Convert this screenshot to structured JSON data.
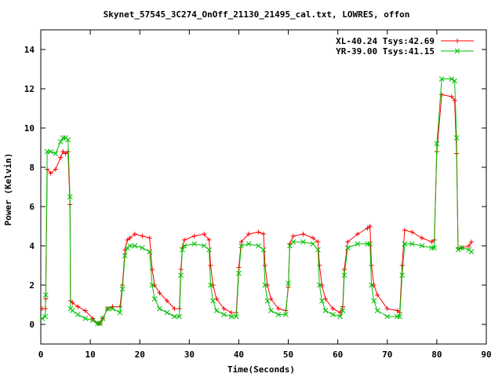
{
  "chart_data": {
    "type": "line",
    "title": "Skynet_57545_3C274_OnOff_21130_21495_cal.txt, LOWRES, offon",
    "xlabel": "Time(Seconds)",
    "ylabel": "Power (Kelvin)",
    "xlim": [
      0,
      90
    ],
    "ylim": [
      -1,
      15
    ],
    "xticks": [
      0,
      10,
      20,
      30,
      40,
      50,
      60,
      70,
      80,
      90
    ],
    "yticks": [
      0,
      2,
      4,
      6,
      8,
      10,
      12,
      14
    ],
    "grid": false,
    "legend_position": "top-right",
    "series": [
      {
        "name": "XL-40.24 Tsys:42.69",
        "color": "#ff0000",
        "marker": "plus",
        "x": [
          0.3,
          0.9,
          1.0,
          1.3,
          2.0,
          3.0,
          4.0,
          4.5,
          5.0,
          5.5,
          5.9,
          6.0,
          6.4,
          7.5,
          9.0,
          10.5,
          11.5,
          12.0,
          12.5,
          13.5,
          14.5,
          16.0,
          16.5,
          17.0,
          17.5,
          18.0,
          19.0,
          20.5,
          22.0,
          22.5,
          23.0,
          24.0,
          25.5,
          27.0,
          28.0,
          28.3,
          28.6,
          29.0,
          31.0,
          33.0,
          34.0,
          34.3,
          34.8,
          35.5,
          37.0,
          38.5,
          39.5,
          40.0,
          40.5,
          42.0,
          44.0,
          45.0,
          45.3,
          45.8,
          46.5,
          48.0,
          49.5,
          50.0,
          50.3,
          51.0,
          53.0,
          55.0,
          56.0,
          56.3,
          56.8,
          57.5,
          59.0,
          60.5,
          61.0,
          61.3,
          62.0,
          64.0,
          66.0,
          66.5,
          66.8,
          67.3,
          68.0,
          70.0,
          72.0,
          72.5,
          73.0,
          73.5,
          75.0,
          77.0,
          79.0,
          79.5,
          80.0,
          81.0,
          83.0,
          83.6,
          84.0,
          84.3,
          85.0,
          86.5,
          87.0
        ],
        "y": [
          0.8,
          0.8,
          1.3,
          7.9,
          7.7,
          7.9,
          8.5,
          8.8,
          8.7,
          8.8,
          6.1,
          1.2,
          1.1,
          0.9,
          0.7,
          0.3,
          0.05,
          0.05,
          0.3,
          0.8,
          0.9,
          0.9,
          2.0,
          3.8,
          4.3,
          4.4,
          4.6,
          4.5,
          4.4,
          2.8,
          2.0,
          1.6,
          1.2,
          0.8,
          0.8,
          2.8,
          3.9,
          4.3,
          4.5,
          4.6,
          4.3,
          3.0,
          2.0,
          1.3,
          0.8,
          0.6,
          0.6,
          2.9,
          4.2,
          4.6,
          4.7,
          4.6,
          3.0,
          2.0,
          1.3,
          0.8,
          0.7,
          1.9,
          4.1,
          4.5,
          4.6,
          4.4,
          4.2,
          3.0,
          2.0,
          1.3,
          0.8,
          0.6,
          0.9,
          2.8,
          4.2,
          4.6,
          4.9,
          5.0,
          3.0,
          2.0,
          1.5,
          0.8,
          0.7,
          0.6,
          3.0,
          4.8,
          4.7,
          4.4,
          4.2,
          4.3,
          8.8,
          11.7,
          11.6,
          11.4,
          8.7,
          3.9,
          3.9,
          4.0,
          4.2
        ]
      },
      {
        "name": "YR-39.00 Tsys:41.15",
        "color": "#00c000",
        "marker": "cross",
        "x": [
          0.3,
          0.9,
          1.0,
          1.3,
          2.0,
          3.0,
          4.0,
          4.5,
          5.0,
          5.5,
          5.9,
          6.0,
          6.4,
          7.5,
          9.0,
          10.5,
          11.5,
          12.0,
          12.5,
          13.5,
          14.5,
          16.0,
          16.5,
          17.0,
          17.5,
          18.0,
          19.0,
          20.5,
          22.0,
          22.5,
          23.0,
          24.0,
          25.5,
          27.0,
          28.0,
          28.3,
          28.6,
          29.0,
          31.0,
          33.0,
          34.0,
          34.3,
          34.8,
          35.5,
          37.0,
          38.5,
          39.5,
          40.0,
          40.5,
          42.0,
          44.0,
          45.0,
          45.3,
          45.8,
          46.5,
          48.0,
          49.5,
          50.0,
          50.3,
          51.0,
          53.0,
          55.0,
          56.0,
          56.3,
          56.8,
          57.5,
          59.0,
          60.5,
          61.0,
          61.3,
          62.0,
          64.0,
          66.0,
          66.5,
          66.8,
          67.3,
          68.0,
          70.0,
          72.0,
          72.5,
          73.0,
          73.5,
          75.0,
          77.0,
          79.0,
          79.5,
          80.0,
          81.0,
          83.0,
          83.6,
          84.0,
          84.3,
          85.0,
          86.5,
          87.0
        ],
        "y": [
          0.3,
          0.4,
          1.5,
          8.8,
          8.8,
          8.7,
          9.3,
          9.5,
          9.5,
          9.4,
          6.5,
          0.8,
          0.7,
          0.5,
          0.3,
          0.2,
          0.05,
          0.05,
          0.3,
          0.8,
          0.8,
          0.6,
          1.8,
          3.5,
          3.9,
          4.0,
          4.0,
          3.9,
          3.7,
          2.0,
          1.3,
          0.8,
          0.6,
          0.4,
          0.4,
          2.5,
          3.8,
          4.0,
          4.1,
          4.0,
          3.8,
          2.0,
          1.2,
          0.7,
          0.5,
          0.4,
          0.4,
          2.6,
          4.0,
          4.1,
          4.0,
          3.8,
          2.0,
          1.2,
          0.7,
          0.5,
          0.5,
          2.1,
          4.0,
          4.2,
          4.2,
          4.1,
          3.8,
          2.0,
          1.2,
          0.7,
          0.5,
          0.4,
          0.7,
          2.5,
          3.9,
          4.1,
          4.1,
          4.1,
          2.0,
          1.2,
          0.7,
          0.4,
          0.4,
          0.4,
          2.5,
          4.1,
          4.1,
          4.0,
          3.9,
          3.9,
          9.2,
          12.5,
          12.5,
          12.4,
          9.5,
          3.8,
          3.9,
          3.8,
          3.7
        ]
      }
    ]
  }
}
